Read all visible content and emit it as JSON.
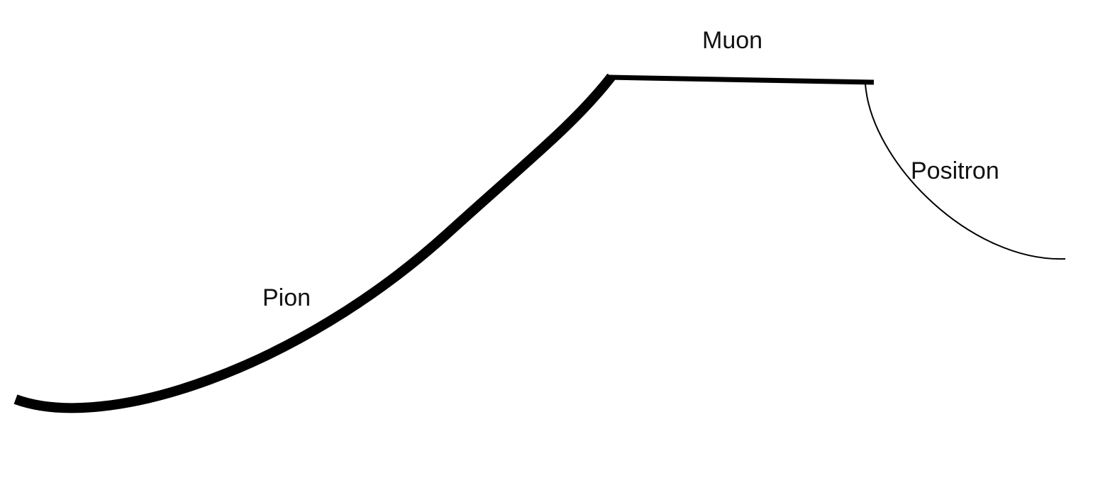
{
  "tracks": [
    {
      "id": "pion",
      "label": "Pion",
      "color": "#000000"
    },
    {
      "id": "muon",
      "label": "Muon",
      "color": "#000000"
    },
    {
      "id": "positron",
      "label": "Positron",
      "color": "#000000"
    }
  ],
  "labels": {
    "pion": "Pion",
    "muon": "Muon",
    "positron": "Positron"
  }
}
